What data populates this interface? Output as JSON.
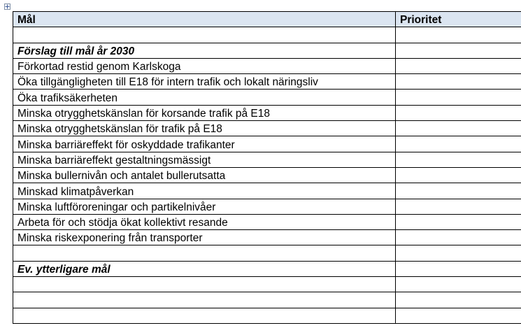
{
  "table": {
    "header": {
      "goal": "Mål",
      "priority": "Prioritet"
    },
    "rows": [
      {
        "goal": "",
        "priority": "",
        "kind": "blank"
      },
      {
        "goal": "Förslag till mål år 2030",
        "priority": "",
        "kind": "section"
      },
      {
        "goal": "Förkortad restid genom Karlskoga",
        "priority": "",
        "kind": "item"
      },
      {
        "goal": "Öka tillgängligheten  till E18 för intern trafik och lokalt näringsliv",
        "priority": "",
        "kind": "item"
      },
      {
        "goal": "Öka trafiksäkerheten",
        "priority": "",
        "kind": "item"
      },
      {
        "goal": "Minska otrygghetskänslan för korsande trafik på E18",
        "priority": "",
        "kind": "item"
      },
      {
        "goal": "Minska otrygghetskänslan för trafik på E18",
        "priority": "",
        "kind": "item"
      },
      {
        "goal": "Minska barriäreffekt för oskyddade trafikanter",
        "priority": "",
        "kind": "item"
      },
      {
        "goal": "Minska barriäreffekt gestaltningsmässigt",
        "priority": "",
        "kind": "item"
      },
      {
        "goal": "Minska bullernivån och antalet bullerutsatta",
        "priority": "",
        "kind": "item"
      },
      {
        "goal": "Minskad klimatpåverkan",
        "priority": "",
        "kind": "item"
      },
      {
        "goal": "Minska luftföroreningar och partikelnivåer",
        "priority": "",
        "kind": "item"
      },
      {
        "goal": "Arbeta för och stödja ökat kollektivt resande",
        "priority": "",
        "kind": "item"
      },
      {
        "goal": "Minska riskexponering från transporter",
        "priority": "",
        "kind": "item"
      },
      {
        "goal": "",
        "priority": "",
        "kind": "blank"
      },
      {
        "goal": "Ev. ytterligare mål",
        "priority": "",
        "kind": "section"
      },
      {
        "goal": "",
        "priority": "",
        "kind": "blank"
      },
      {
        "goal": "",
        "priority": "",
        "kind": "blank"
      },
      {
        "goal": "",
        "priority": "",
        "kind": "blank"
      }
    ]
  },
  "icons": {
    "table_handle": "table-move-handle-icon"
  }
}
